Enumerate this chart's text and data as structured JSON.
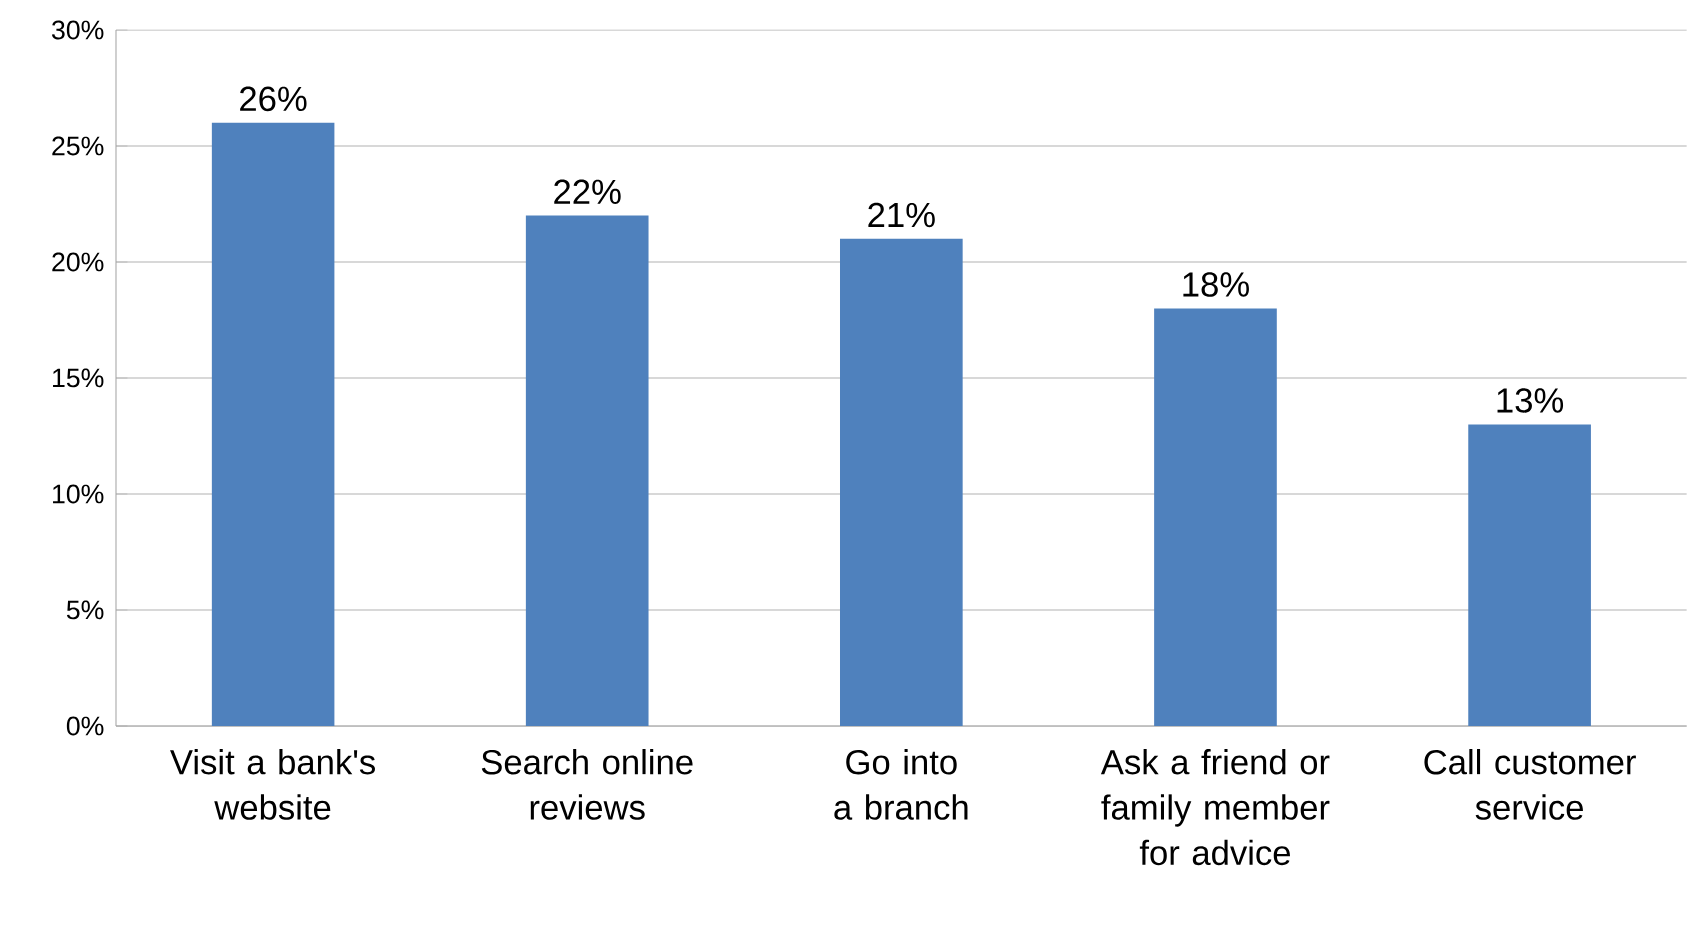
{
  "chart_data": {
    "type": "bar",
    "categories": [
      "Visit a bank's website",
      "Search online reviews",
      "Go into a branch",
      "Ask a friend or family member for advice",
      "Call customer service"
    ],
    "values": [
      26,
      22,
      21,
      18,
      13
    ],
    "value_labels": [
      "26%",
      "22%",
      "21%",
      "18%",
      "13%"
    ],
    "color": "#4f81bd",
    "ylim": [
      0,
      30
    ],
    "yticks": [
      {
        "value": 0,
        "label": "0%"
      },
      {
        "value": 5,
        "label": "5%"
      },
      {
        "value": 10,
        "label": "10%"
      },
      {
        "value": 15,
        "label": "15%"
      },
      {
        "value": 20,
        "label": "20%"
      },
      {
        "value": 25,
        "label": "25%"
      },
      {
        "value": 30,
        "label": "30%"
      }
    ],
    "grid": "y"
  }
}
